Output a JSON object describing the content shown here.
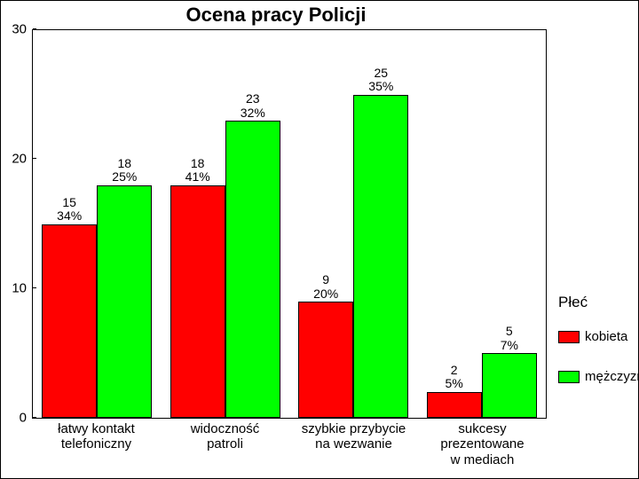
{
  "chart": {
    "type": "bar",
    "title": "Ocena pracy Policji",
    "title_fontsize": 22,
    "background_color": "#ffffff",
    "border_color": "#000000",
    "ylim": [
      0,
      30
    ],
    "yticks": [
      0,
      10,
      20,
      30
    ],
    "label_fontsize": 15,
    "bar_label_fontsize": 14,
    "bar_width_ratio": 0.43,
    "series": [
      {
        "name": "kobieta",
        "color": "#ff0000"
      },
      {
        "name": "mężczyzna",
        "color": "#00ff00"
      }
    ],
    "categories": [
      {
        "label": "łatwy kontakt\ntelefoniczny",
        "bars": [
          {
            "value": 15,
            "display": "15\n34%"
          },
          {
            "value": 18,
            "display": "18\n25%"
          }
        ]
      },
      {
        "label": "widoczność\npatroli",
        "bars": [
          {
            "value": 18,
            "display": "18\n41%"
          },
          {
            "value": 23,
            "display": "23\n32%"
          }
        ]
      },
      {
        "label": "szybkie przybycie\nna wezwanie",
        "bars": [
          {
            "value": 9,
            "display": "9\n20%"
          },
          {
            "value": 25,
            "display": "25\n35%"
          }
        ]
      },
      {
        "label": "sukcesy\nprezentowane\nw mediach",
        "bars": [
          {
            "value": 2,
            "display": "2\n5%"
          },
          {
            "value": 5,
            "display": "5\n7%"
          }
        ]
      }
    ],
    "legend": {
      "title": "Płeć",
      "position": "right"
    }
  }
}
